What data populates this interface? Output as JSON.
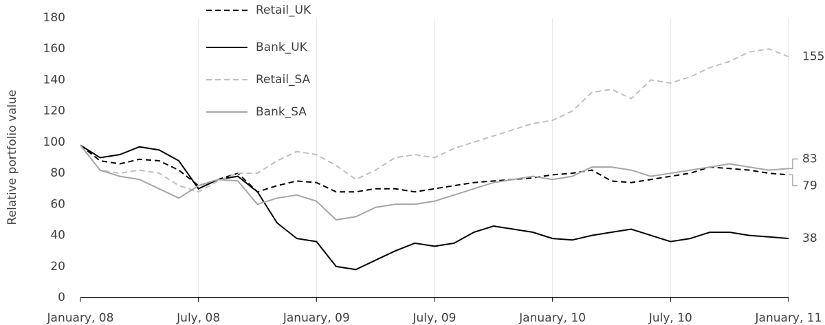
{
  "chart_data": {
    "type": "line",
    "y_label": "Relative portfolio value",
    "x": [
      "2008-01",
      "2008-02",
      "2008-03",
      "2008-04",
      "2008-05",
      "2008-06",
      "2008-07",
      "2008-08",
      "2008-09",
      "2008-10",
      "2008-11",
      "2008-12",
      "2009-01",
      "2009-02",
      "2009-03",
      "2009-04",
      "2009-05",
      "2009-06",
      "2009-07",
      "2009-08",
      "2009-09",
      "2009-10",
      "2009-11",
      "2009-12",
      "2010-01",
      "2010-02",
      "2010-03",
      "2010-04",
      "2010-05",
      "2010-06",
      "2010-07",
      "2010-08",
      "2010-09",
      "2010-10",
      "2010-11",
      "2010-12",
      "2011-01"
    ],
    "xticks": [
      {
        "value": "2008-01",
        "label": "January, 08"
      },
      {
        "value": "2008-07",
        "label": "July, 08"
      },
      {
        "value": "2009-01",
        "label": "January, 09"
      },
      {
        "value": "2009-07",
        "label": "July, 09"
      },
      {
        "value": "2010-01",
        "label": "January, 10"
      },
      {
        "value": "2010-07",
        "label": "July, 10"
      },
      {
        "value": "2011-01",
        "label": "January, 11"
      }
    ],
    "ylim": [
      0,
      180
    ],
    "yticks": [
      0,
      20,
      40,
      60,
      80,
      100,
      120,
      140,
      160,
      180
    ],
    "grid": "x",
    "legend": "top-left",
    "series": [
      {
        "name": "Retail_UK",
        "color": "#000000",
        "style": "dashed",
        "values": [
          98,
          88,
          86,
          89,
          88,
          82,
          72,
          76,
          80,
          68,
          72,
          75,
          74,
          68,
          68,
          70,
          70,
          68,
          70,
          72,
          74,
          75,
          76,
          77,
          79,
          80,
          82,
          75,
          74,
          76,
          78,
          80,
          84,
          83,
          82,
          80,
          79
        ]
      },
      {
        "name": "Bank_UK",
        "color": "#000000",
        "style": "solid",
        "values": [
          98,
          90,
          92,
          97,
          95,
          88,
          70,
          76,
          78,
          68,
          48,
          38,
          36,
          20,
          18,
          24,
          30,
          35,
          33,
          35,
          42,
          46,
          44,
          42,
          38,
          37,
          40,
          42,
          44,
          40,
          36,
          38,
          42,
          42,
          40,
          39,
          38
        ]
      },
      {
        "name": "Retail_SA",
        "color": "#bfbfbf",
        "style": "dashed",
        "values": [
          98,
          82,
          80,
          82,
          80,
          72,
          68,
          75,
          80,
          80,
          88,
          94,
          92,
          85,
          76,
          82,
          90,
          92,
          90,
          96,
          100,
          104,
          108,
          112,
          114,
          120,
          132,
          134,
          128,
          140,
          138,
          142,
          148,
          152,
          158,
          160,
          155
        ]
      },
      {
        "name": "Bank_SA",
        "color": "#a6a6a6",
        "style": "solid",
        "values": [
          98,
          82,
          78,
          76,
          70,
          64,
          72,
          76,
          75,
          60,
          64,
          66,
          62,
          50,
          52,
          58,
          60,
          60,
          62,
          66,
          70,
          74,
          76,
          78,
          76,
          78,
          84,
          84,
          82,
          78,
          80,
          82,
          84,
          86,
          84,
          82,
          83
        ]
      }
    ]
  }
}
